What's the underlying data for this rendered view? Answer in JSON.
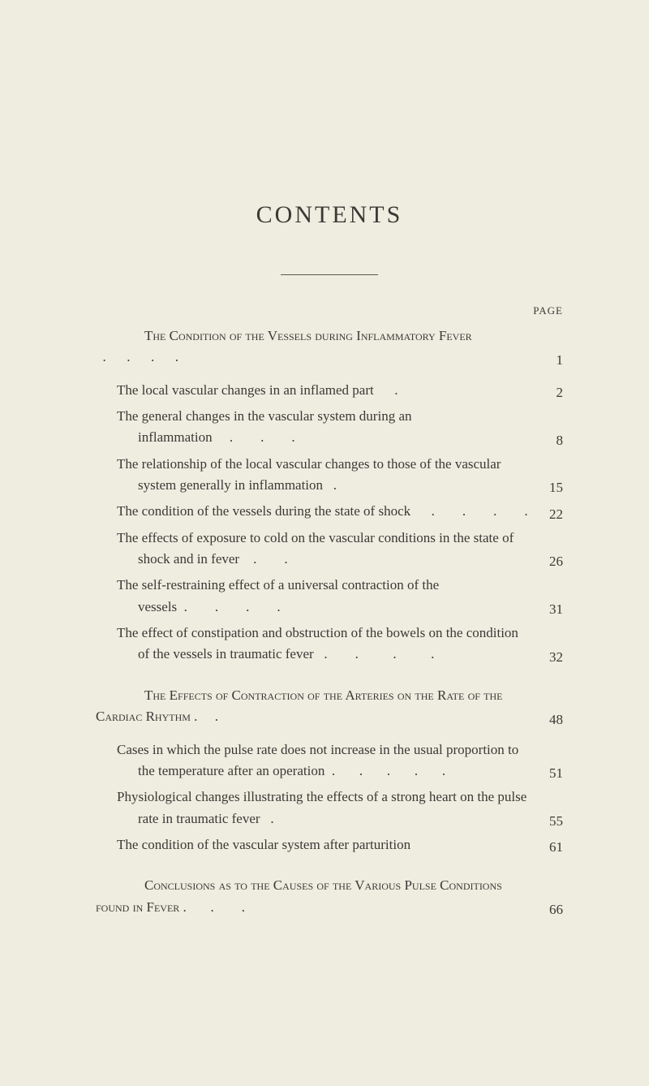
{
  "colors": {
    "page_bg": "#efece0",
    "text": "#3a3a35",
    "rule": "#5a5a52"
  },
  "typography": {
    "title_fontsize": 30,
    "title_letter_spacing": 3,
    "body_fontsize": 17,
    "line_height": 1.55,
    "pagelabel_fontsize": 13
  },
  "title": "CONTENTS",
  "page_label": "PAGE",
  "sections": [
    {
      "heading": {
        "text": "The Condition of the Vessels during Inflammatory Fever",
        "page": "1"
      },
      "items": [
        {
          "text": "The local vascular changes in an inflamed part",
          "page": "2"
        },
        {
          "text": "The general changes in the vascular system during an inflammation",
          "page": "8"
        },
        {
          "text": "The relationship of the local vascular changes to those of the vascular system generally in inflammation",
          "page": "15"
        },
        {
          "text": "The condition of the vessels during the state of shock",
          "page": "22"
        },
        {
          "text": "The effects of exposure to cold on the vascular conditions in the state of shock and in fever",
          "page": "26"
        },
        {
          "text": "The self-restraining effect of a universal contraction of the vessels",
          "page": "31"
        },
        {
          "text": "The effect of constipation and obstruction of the bowels on the condition of the vessels in traumatic fever",
          "page": "32"
        }
      ]
    },
    {
      "heading": {
        "text": "The Effects of Contraction of the Arteries on the Rate of the Cardiac Rhythm .",
        "page": "48"
      },
      "items": [
        {
          "text": "Cases in which the pulse rate does not increase in the usual proportion to the temperature after an operation",
          "page": "51"
        },
        {
          "text": "Physiological changes illustrating the effects of a strong heart on the pulse rate in traumatic fever",
          "page": "55"
        },
        {
          "text": "The condition of the vascular system after parturition",
          "page": "61"
        }
      ]
    },
    {
      "heading": {
        "text": "Conclusions as to the Causes of the Various Pulse Conditions found in Fever .",
        "page": "66"
      },
      "items": []
    }
  ]
}
